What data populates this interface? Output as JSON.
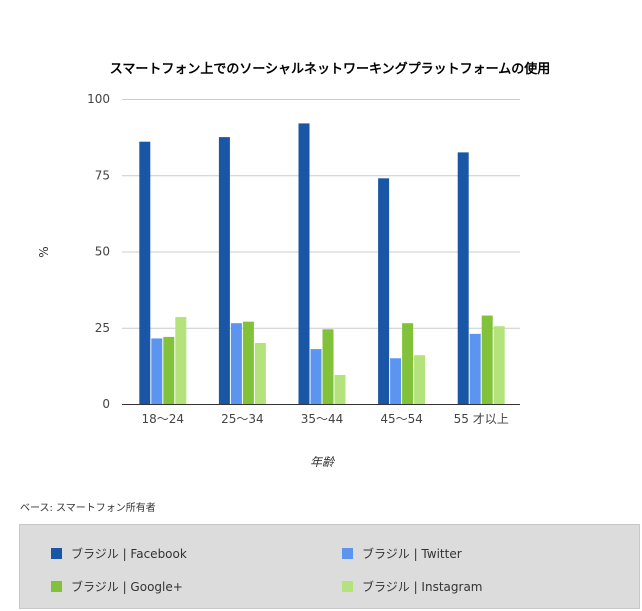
{
  "chart_data": {
    "type": "bar",
    "title": "スマートフォン上でのソーシャルネットワーキングプラットフォームの使用",
    "ylabel": "%",
    "xlabel": "年齢",
    "ylim": [
      0,
      100
    ],
    "yticks": [
      0,
      25,
      50,
      75,
      100
    ],
    "categories": [
      "18〜24",
      "25〜34",
      "35〜44",
      "45〜54",
      "55 才以上"
    ],
    "series": [
      {
        "name": "ブラジル | Facebook",
        "color": "#1a56a6",
        "values": [
          86,
          87.5,
          92,
          74,
          82.5
        ]
      },
      {
        "name": "ブラジル | Twitter",
        "color": "#5b95f0",
        "values": [
          21.5,
          26.5,
          18,
          15,
          23
        ]
      },
      {
        "name": "ブラジル | Google+",
        "color": "#82c23b",
        "values": [
          22,
          27,
          24.5,
          26.5,
          29
        ]
      },
      {
        "name": "ブラジル | Instagram",
        "color": "#b3e37a",
        "values": [
          28.5,
          20,
          9.5,
          16,
          25.5
        ]
      }
    ],
    "grid": true,
    "legend_position": "bottom"
  },
  "footnote": "ベース: スマートフォン所有者"
}
